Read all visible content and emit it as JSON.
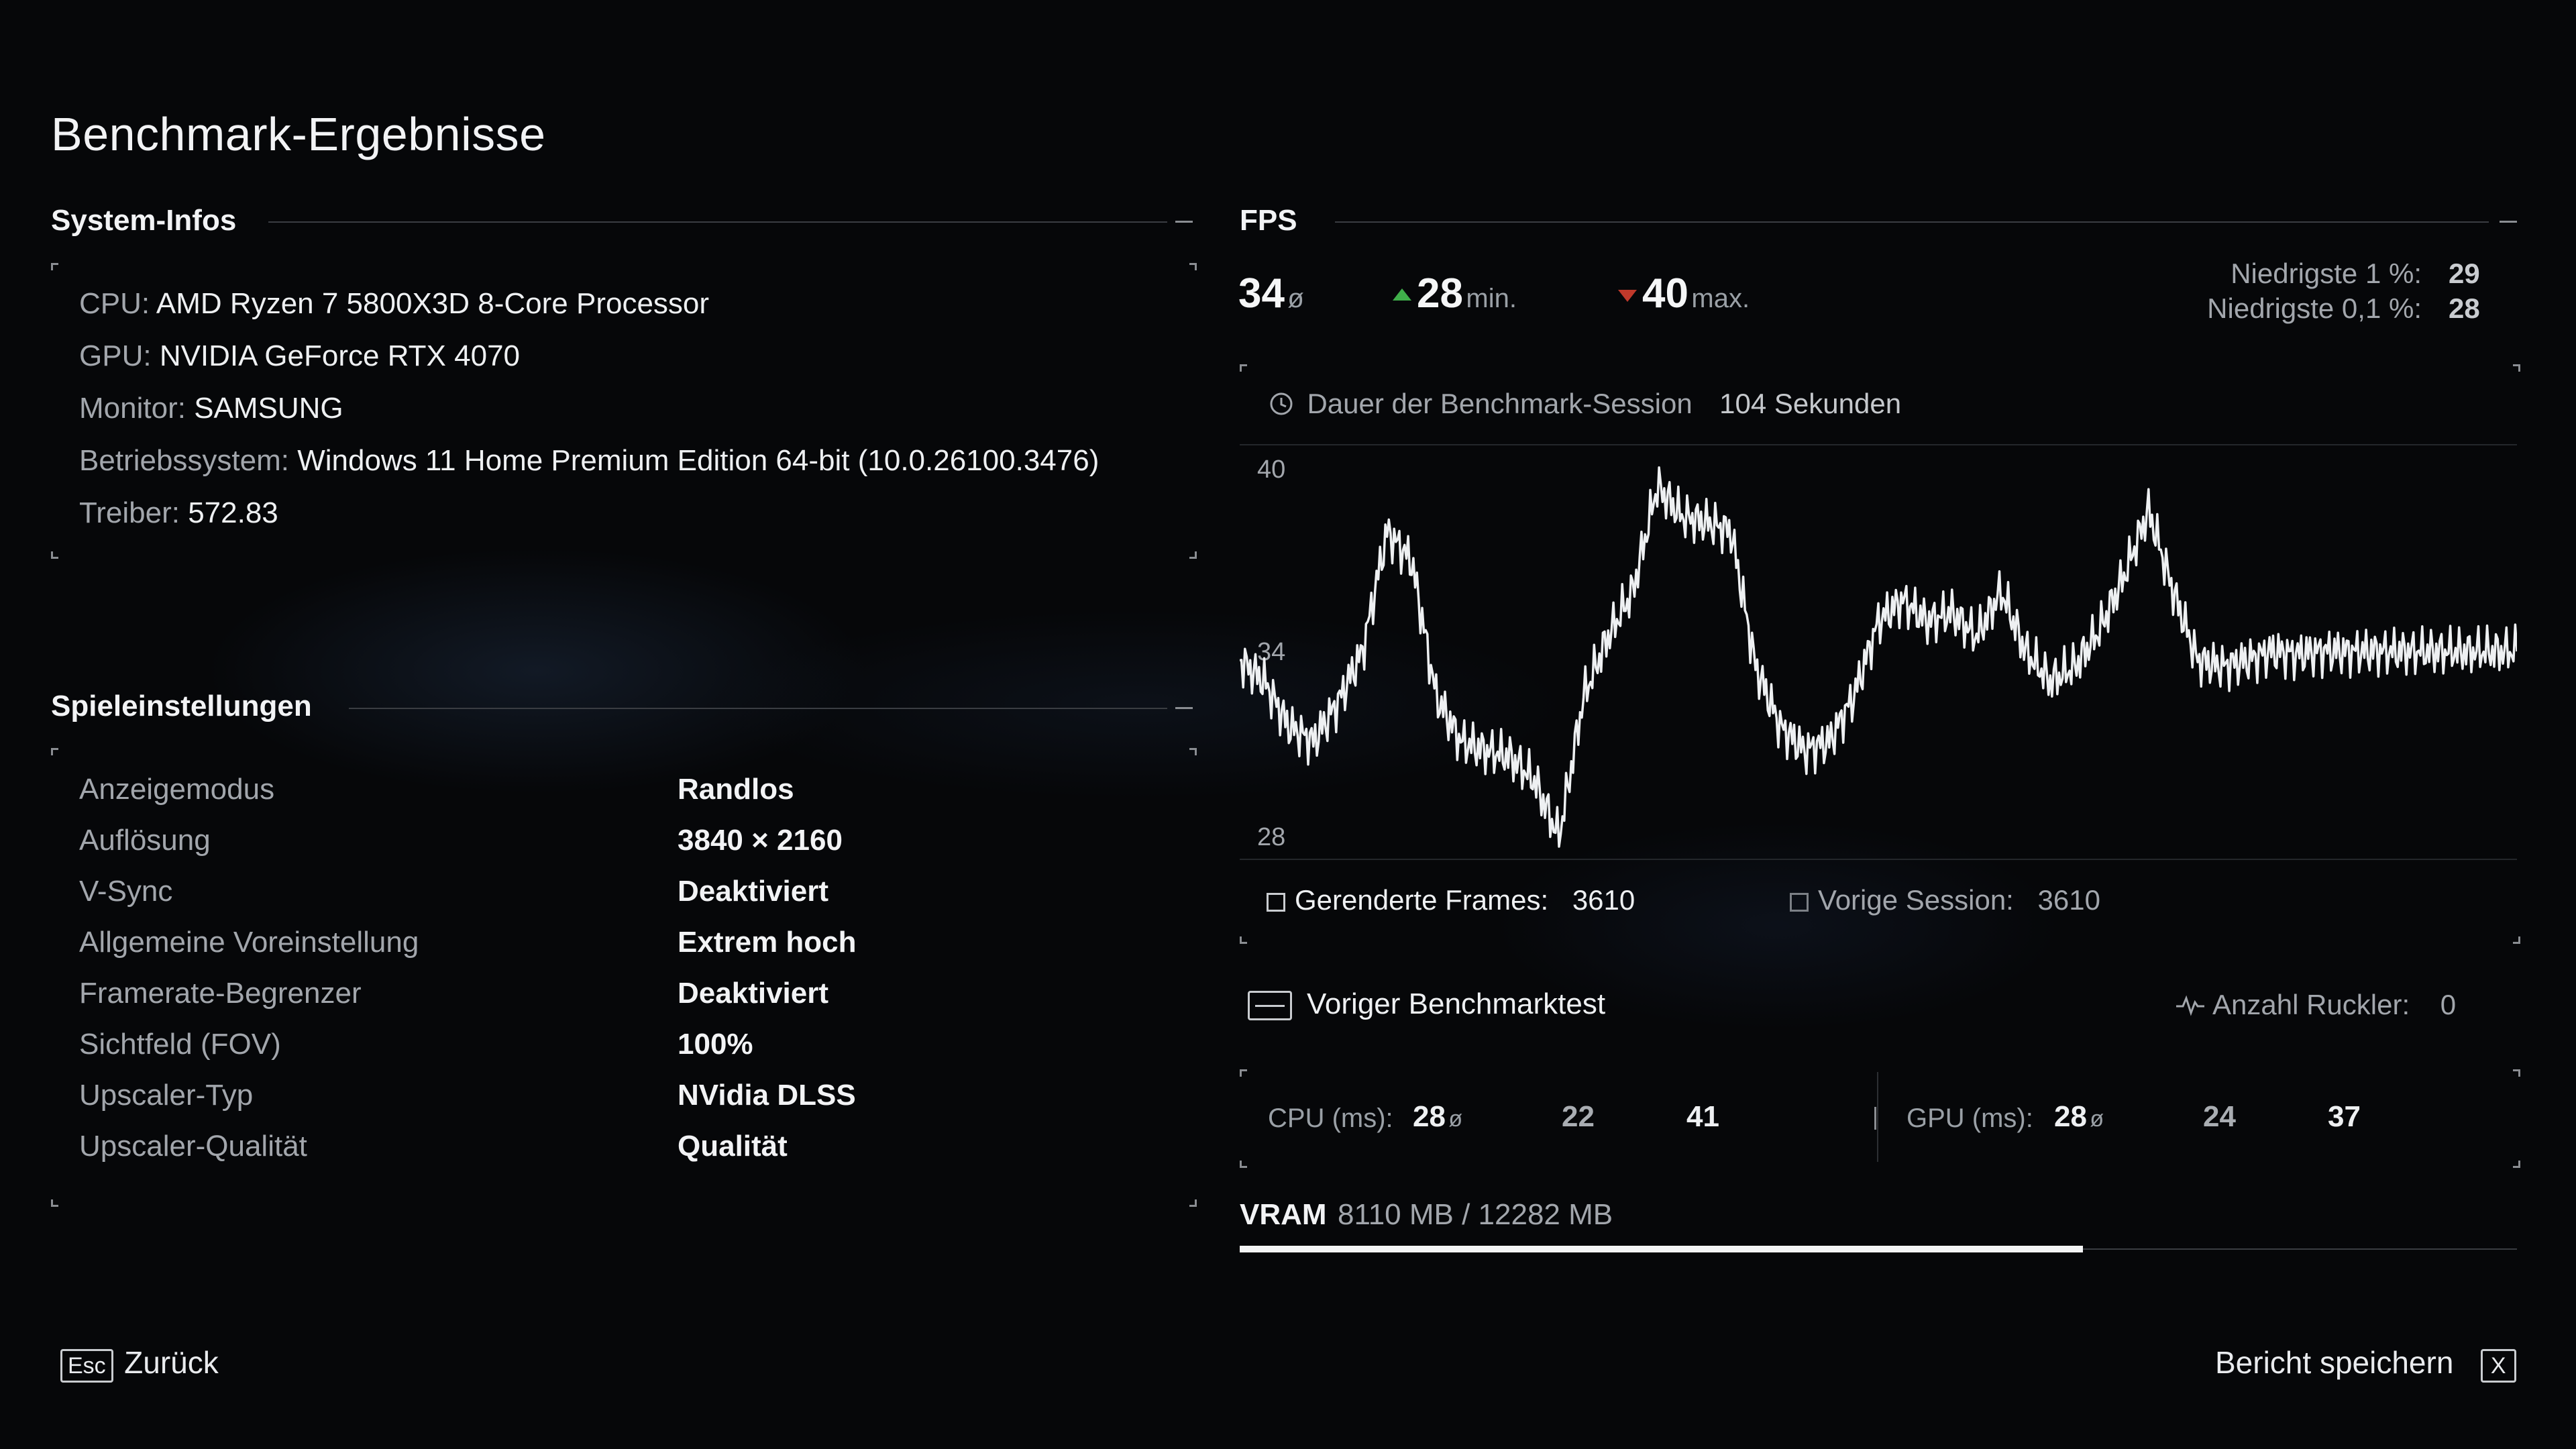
{
  "page_title": "Benchmark-Ergebnisse",
  "system_info": {
    "heading": "System-Infos",
    "rows": [
      {
        "key": "CPU:",
        "value": "AMD Ryzen 7 5800X3D 8-Core Processor"
      },
      {
        "key": "GPU:",
        "value": "NVIDIA GeForce RTX 4070"
      },
      {
        "key": "Monitor:",
        "value": "SAMSUNG"
      },
      {
        "key": "Betriebssystem:",
        "value": "Windows 11 Home Premium Edition 64-bit (10.0.26100.3476)"
      },
      {
        "key": "Treiber:",
        "value": "572.83"
      }
    ]
  },
  "game_settings": {
    "heading": "Spieleinstellungen",
    "rows": [
      {
        "key": "Anzeigemodus",
        "value": "Randlos"
      },
      {
        "key": "Auflösung",
        "value": "3840 × 2160"
      },
      {
        "key": "V-Sync",
        "value": "Deaktiviert"
      },
      {
        "key": "Allgemeine Voreinstellung",
        "value": "Extrem hoch"
      },
      {
        "key": "Framerate-Begrenzer",
        "value": "Deaktiviert"
      },
      {
        "key": "Sichtfeld (FOV)",
        "value": "100%"
      },
      {
        "key": "Upscaler-Typ",
        "value": "NVidia DLSS"
      },
      {
        "key": "Upscaler-Qualität",
        "value": "Qualität"
      }
    ]
  },
  "fps": {
    "heading": "FPS",
    "avg": "34",
    "avg_unit": "ø",
    "min": "28",
    "min_unit": "min.",
    "max": "40",
    "max_unit": "max.",
    "low1_label": "Niedrigste 1 %:",
    "low1_value": "29",
    "low01_label": "Niedrigste 0,1 %:",
    "low01_value": "28",
    "min_color": "#3fae4a",
    "max_color": "#c0392b"
  },
  "session": {
    "label": "Dauer der Benchmark-Session",
    "value": "104 Sekunden",
    "icon": "clock-icon"
  },
  "chart_data": {
    "type": "line",
    "y_ticks": [
      "40",
      "34",
      "28"
    ],
    "ylim": [
      28,
      41
    ],
    "x_range": [
      0,
      104
    ],
    "series": [
      {
        "x": [
          0,
          2,
          4,
          6,
          8,
          10,
          12,
          14,
          16,
          18,
          20,
          22,
          24,
          26,
          28,
          30,
          32,
          34,
          36,
          38,
          40,
          42,
          44,
          46,
          48,
          50,
          52,
          54,
          56,
          58,
          60,
          62,
          64,
          66,
          68,
          70,
          72,
          74,
          76,
          78,
          80,
          82,
          84,
          86,
          88,
          90,
          92,
          94,
          96,
          98,
          100,
          102,
          104
        ],
        "y": [
          34.2,
          33.5,
          32.0,
          31.5,
          32.8,
          34.5,
          38.5,
          37.5,
          33.0,
          31.5,
          31.2,
          31.0,
          30.2,
          28.3,
          33.0,
          35.0,
          36.5,
          40.0,
          39.0,
          38.8,
          38.5,
          34.0,
          32.0,
          31.2,
          31.5,
          33.0,
          35.5,
          36.2,
          35.5,
          35.8,
          35.0,
          36.5,
          34.5,
          33.5,
          34.0,
          35.2,
          37.0,
          39.2,
          36.5,
          34.2,
          34.0,
          34.2,
          34.5,
          34.4,
          34.5,
          34.5,
          34.5,
          34.5,
          34.5,
          34.5,
          34.5,
          34.5,
          34.5
        ]
      }
    ],
    "grid": false
  },
  "frames": {
    "rendered_label": "Gerenderte Frames:",
    "rendered_value": "3610",
    "previous_label": "Vorige Session:",
    "previous_value": "3610"
  },
  "previous_benchmark": {
    "label": "Voriger Benchmarktest",
    "stutter_label": "Anzahl Ruckler:",
    "stutter_value": "0"
  },
  "timings": {
    "cpu_label": "CPU (ms):",
    "cpu_avg": "28",
    "cpu_min": "22",
    "cpu_max": "41",
    "gpu_label": "GPU (ms):",
    "gpu_avg": "28",
    "gpu_min": "24",
    "gpu_max": "37",
    "avg_unit": "ø"
  },
  "vram": {
    "label": "VRAM",
    "value": "8110 MB / 12282 MB",
    "fraction": 0.66
  },
  "footer": {
    "back_key": "Esc",
    "back_label": "Zurück",
    "save_label": "Bericht speichern",
    "save_key": "X"
  }
}
